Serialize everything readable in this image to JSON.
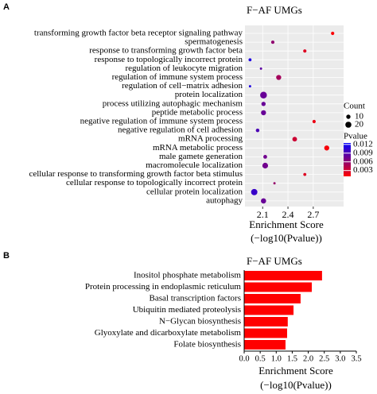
{
  "chart_data": [
    {
      "type": "dot",
      "panel_label": "A",
      "title": "F−AF UMGs",
      "categories": [
        "transforming growth factor beta receptor signaling pathway",
        "spermatogenesis",
        "response to transforming growth factor beta",
        "response to topologically incorrect protein",
        "regulation of leukocyte migration",
        "regulation of immune system process",
        "regulation of cell−matrix adhesion",
        "protein localization",
        "process utilizing autophagic mechanism",
        "peptide metabolic process",
        "negative regulation of immune system process",
        "negative regulation of cell adhesion",
        "mRNA processing",
        "mRNA metabolic process",
        "male gamete generation",
        "macromolecule localization",
        "cellular response to transforming growth factor beta stimulus",
        "cellular response to topologically incorrect protein",
        "cellular protein localization",
        "autophagy"
      ],
      "values": [
        2.93,
        2.22,
        2.6,
        1.95,
        2.08,
        2.29,
        1.95,
        2.11,
        2.11,
        2.11,
        2.71,
        2.04,
        2.48,
        2.86,
        2.13,
        2.13,
        2.6,
        2.24,
        2.0,
        2.11
      ],
      "counts": [
        6,
        6,
        6,
        5,
        3,
        14,
        3,
        25,
        10,
        14,
        6,
        7,
        12,
        14,
        8,
        18,
        5,
        3,
        22,
        15
      ],
      "pvalues": [
        0.0012,
        0.006,
        0.0025,
        0.0112,
        0.0083,
        0.0051,
        0.0112,
        0.0078,
        0.0078,
        0.0078,
        0.0019,
        0.0091,
        0.0033,
        0.0014,
        0.0074,
        0.0074,
        0.0025,
        0.0058,
        0.01,
        0.0078
      ],
      "xlim": [
        1.89,
        3.06
      ],
      "xticks": [
        2.1,
        2.4,
        2.7
      ],
      "grid": true,
      "xlabel_lines": [
        "Enrichment Score",
        "(−log10(Pvalue))"
      ],
      "size_legend_title": "Count",
      "size_ticks": [
        10,
        20
      ],
      "color_legend_title": "Pvalue",
      "color_ticks": [
        0.012,
        0.009,
        0.006,
        0.003
      ],
      "clim": [
        0.001,
        0.0125
      ],
      "color_low": "#ff0000",
      "color_high": "#0000ff"
    },
    {
      "type": "hbar",
      "panel_label": "B",
      "title": "F−AF UMGs",
      "categories": [
        "Inositol phosphate metabolism",
        "Protein processing in endoplasmic reticulum",
        "Basal transcription factors",
        "Ubiquitin mediated proteolysis",
        "N−Glycan biosynthesis",
        "Glyoxylate and dicarboxylate metabolism",
        "Folate biosynthesis"
      ],
      "values": [
        2.43,
        2.11,
        1.76,
        1.54,
        1.36,
        1.34,
        1.29
      ],
      "color": "#ff0000",
      "xlim": [
        0,
        3.5
      ],
      "xticks": [
        {
          "value": 0,
          "label": "0.0"
        },
        0.5,
        {
          "value": 1,
          "label": "1.0"
        },
        1.5,
        {
          "value": 2,
          "label": "2.0"
        },
        2.5,
        {
          "value": 3,
          "label": "3.0"
        },
        3.5
      ],
      "xlabel_lines": [
        "Enrichment Score",
        "(−log10(Pvalue))"
      ]
    }
  ]
}
